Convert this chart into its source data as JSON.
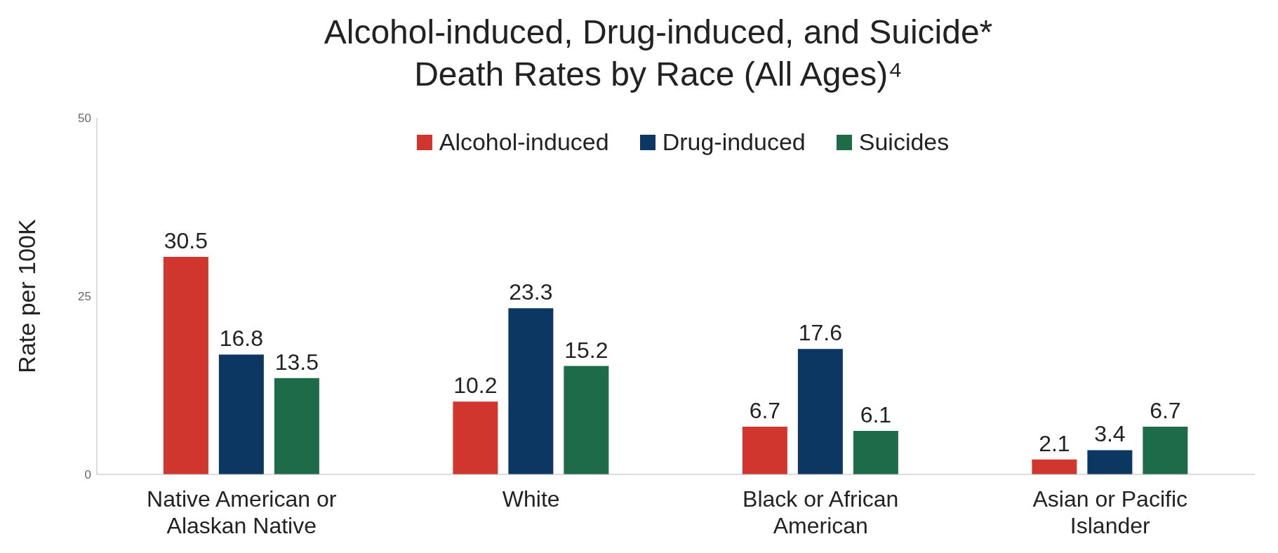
{
  "chart_data": {
    "type": "bar",
    "title": "Alcohol-induced, Drug-induced, and Suicide*\nDeath Rates by Race (All Ages)⁴",
    "ylabel": "Rate per 100K",
    "categories": [
      "Native American or Alaskan Native",
      "White",
      "Black or African American",
      "Asian or Pacific Islander"
    ],
    "series": [
      {
        "name": "Alcohol-induced",
        "color": "#d0352e",
        "values": [
          30.5,
          10.2,
          6.7,
          2.1
        ]
      },
      {
        "name": "Drug-induced",
        "color": "#0d3763",
        "values": [
          16.8,
          23.3,
          17.6,
          3.4
        ]
      },
      {
        "name": "Suicides",
        "color": "#1e6b4a",
        "values": [
          13.5,
          15.2,
          6.1,
          6.7
        ]
      }
    ],
    "ylim": [
      0,
      50
    ],
    "yticks": [
      0,
      25,
      50
    ],
    "grid": false,
    "legend": "top",
    "data_labels": true
  }
}
